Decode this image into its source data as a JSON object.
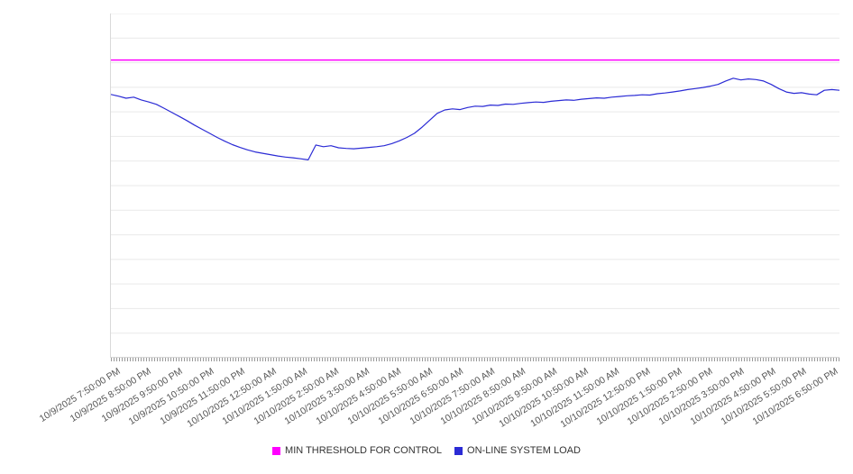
{
  "chart_data": {
    "type": "line",
    "title": "",
    "xlabel": "",
    "ylabel": "",
    "ylim": [
      0,
      100
    ],
    "y_axis_labels": [],
    "grid": true,
    "grid_rows": 14,
    "legend_position": "bottom",
    "x_tick_labels": [
      "10/9/2025 7:50:00 PM",
      "10/9/2025 8:50:00 PM",
      "10/9/2025 9:50:00 PM",
      "10/9/2025 10:50:00 PM",
      "10/9/2025 11:50:00 PM",
      "10/10/2025 12:50:00 AM",
      "10/10/2025 1:50:00 AM",
      "10/10/2025 2:50:00 AM",
      "10/10/2025 3:50:00 AM",
      "10/10/2025 4:50:00 AM",
      "10/10/2025 5:50:00 AM",
      "10/10/2025 6:50:00 AM",
      "10/10/2025 7:50:00 AM",
      "10/10/2025 8:50:00 AM",
      "10/10/2025 9:50:00 AM",
      "10/10/2025 10:50:00 AM",
      "10/10/2025 11:50:00 AM",
      "10/10/2025 12:50:00 PM",
      "10/10/2025 1:50:00 PM",
      "10/10/2025 2:50:00 PM",
      "10/10/2025 3:50:00 PM",
      "10/10/2025 4:50:00 PM",
      "10/10/2025 5:50:00 PM",
      "10/10/2025 6:50:00 PM"
    ],
    "series": [
      {
        "name": "MIN THRESHOLD FOR CONTROL",
        "color": "#ff00ff",
        "type": "threshold",
        "value": 86.5
      },
      {
        "name": "ON-LINE SYSTEM LOAD",
        "color": "#2b2bd5",
        "type": "line",
        "sample_interval_minutes": 15,
        "values": [
          76.5,
          76.0,
          75.4,
          75.7,
          74.9,
          74.3,
          73.6,
          72.5,
          71.3,
          70.1,
          68.9,
          67.6,
          66.4,
          65.2,
          64.0,
          62.9,
          61.9,
          61.1,
          60.4,
          59.8,
          59.4,
          59.0,
          58.6,
          58.3,
          58.1,
          57.8,
          57.5,
          61.8,
          61.3,
          61.6,
          61.0,
          60.8,
          60.7,
          60.9,
          61.1,
          61.3,
          61.6,
          62.2,
          63.0,
          64.0,
          65.2,
          67.0,
          69.0,
          71.0,
          72.0,
          72.3,
          72.1,
          72.7,
          73.1,
          73.0,
          73.4,
          73.3,
          73.7,
          73.6,
          73.9,
          74.1,
          74.3,
          74.2,
          74.5,
          74.7,
          74.9,
          74.8,
          75.1,
          75.3,
          75.5,
          75.4,
          75.7,
          75.9,
          76.1,
          76.2,
          76.4,
          76.3,
          76.7,
          76.9,
          77.2,
          77.5,
          77.9,
          78.2,
          78.5,
          78.9,
          79.4,
          80.4,
          81.2,
          80.7,
          81.0,
          80.8,
          80.4,
          79.4,
          78.2,
          77.2,
          76.8,
          77.0,
          76.6,
          76.4,
          77.7,
          77.9,
          77.7
        ]
      }
    ]
  },
  "legend": {
    "items": [
      {
        "label": "MIN THRESHOLD FOR CONTROL",
        "color": "#ff00ff"
      },
      {
        "label": "ON-LINE SYSTEM LOAD",
        "color": "#2b2bd5"
      }
    ]
  }
}
